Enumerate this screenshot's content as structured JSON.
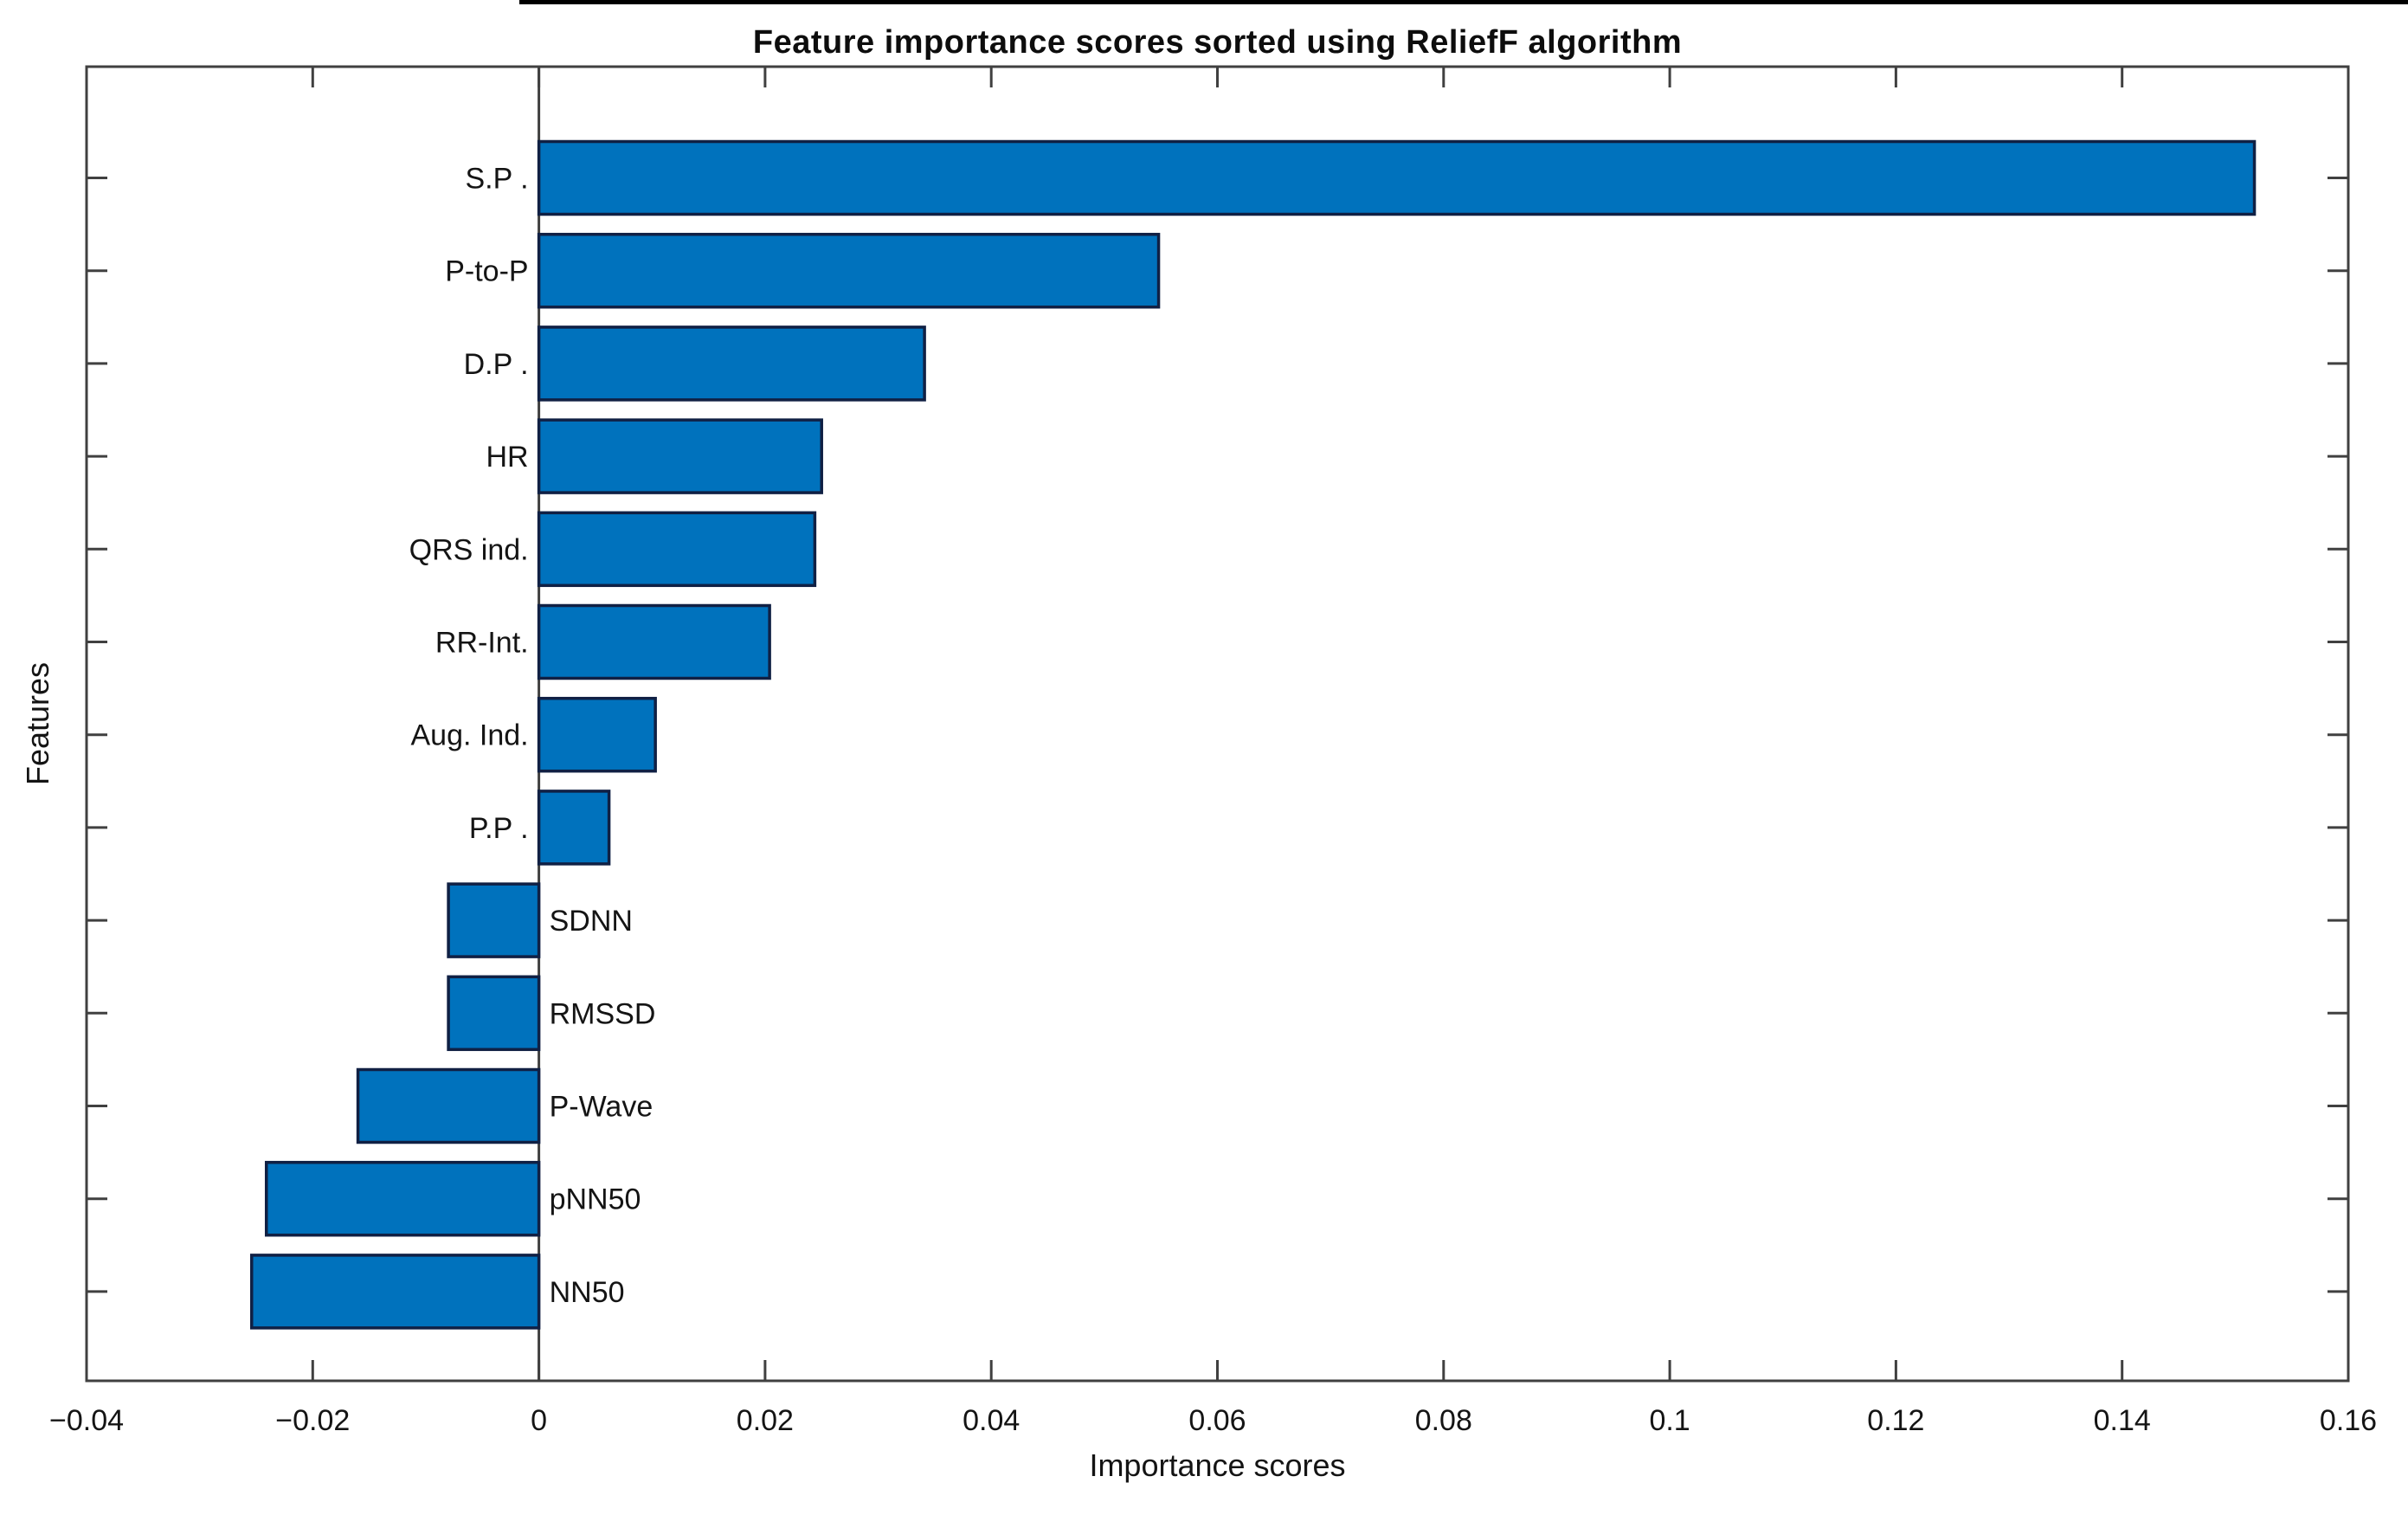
{
  "figure": {
    "title": "Feature importance scores sorted using ReliefF algorithm",
    "xlabel": "Importance scores",
    "ylabel": "Features"
  },
  "chart_data": {
    "type": "bar",
    "orientation": "horizontal",
    "title": "Feature importance scores sorted using ReliefF algorithm",
    "xlabel": "Importance scores",
    "ylabel": "Features",
    "categories": [
      "S.P .",
      "P-to-P",
      "D.P .",
      "HR",
      "QRS ind.",
      "RR-Int.",
      "Aug. Ind.",
      "P.P .",
      "SDNN",
      "RMSSD",
      "P-Wave",
      "pNN50",
      "NN50"
    ],
    "values": [
      0.1517,
      0.0548,
      0.0341,
      0.025,
      0.0244,
      0.0204,
      0.0103,
      0.0062,
      -0.008,
      -0.008,
      -0.016,
      -0.0241,
      -0.0254
    ],
    "xlim": [
      -0.04,
      0.16
    ],
    "xticks": [
      -0.04,
      -0.02,
      0,
      0.02,
      0.04,
      0.06,
      0.08,
      0.1,
      0.12,
      0.14,
      0.16
    ],
    "xtick_labels": [
      "−0.04",
      "−0.02",
      "0",
      "0.02",
      "0.04",
      "0.06",
      "0.08",
      "0.1",
      "0.12",
      "0.14",
      "0.16"
    ],
    "grid": false,
    "legend": null,
    "label_side_rule": "positive bars labeled left of zero line, negative bars labeled right",
    "colors": {
      "bar_fill": "#0072BD",
      "bar_edge": "#102044",
      "axis": "#404040",
      "text": "#141414",
      "top_edge_artifact": "#000000"
    }
  }
}
